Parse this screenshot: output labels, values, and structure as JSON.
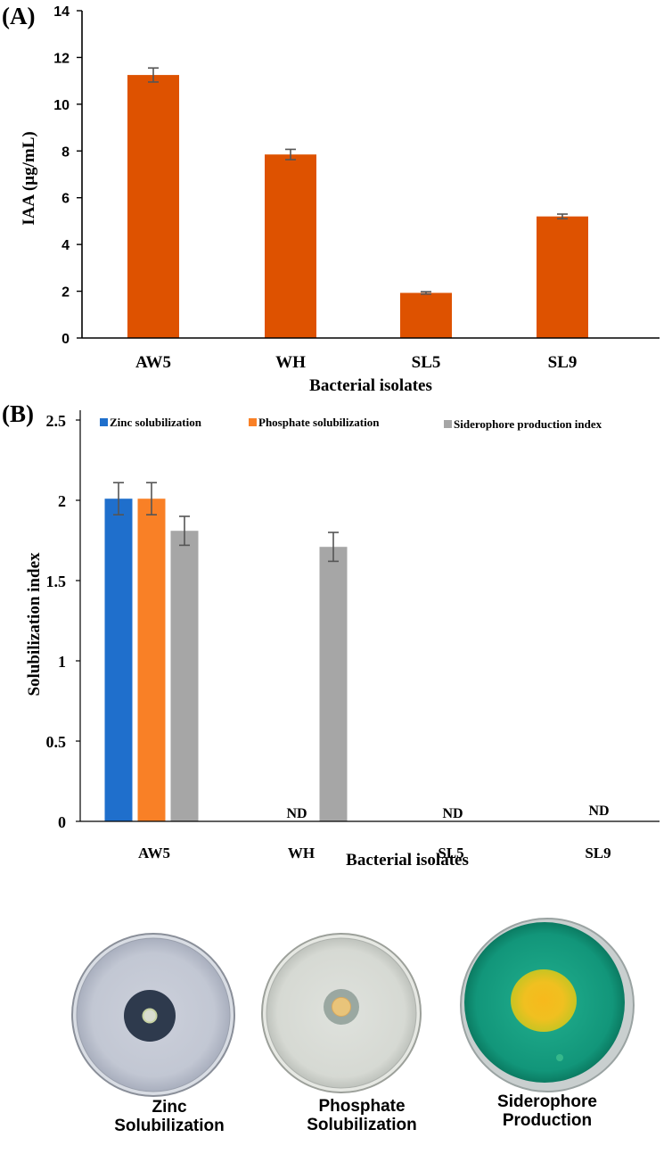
{
  "colors": {
    "iaa_bar": "#de5200",
    "zinc": "#1f6fcc",
    "phosphate": "#f98026",
    "siderophore": "#a6a6a6",
    "error": "#555555"
  },
  "chart_data": [
    {
      "panel_label": "(A)",
      "type": "bar",
      "title": "",
      "xlabel": "Bacterial isolates",
      "ylabel": "IAA (µg/mL)",
      "ylim": [
        0,
        14
      ],
      "yticks": [
        "0",
        "2",
        "4",
        "6",
        "8",
        "10",
        "12",
        "14"
      ],
      "categories": [
        "AW5",
        "WH",
        "SL5",
        "SL9"
      ],
      "values": [
        11.25,
        7.85,
        1.93,
        5.2
      ],
      "errors": [
        0.3,
        0.22,
        0.05,
        0.1
      ]
    },
    {
      "panel_label": "(B)",
      "type": "bar",
      "title": "",
      "xlabel": "Bacterial isolates",
      "ylabel": "Solubilization index",
      "ylim": [
        0,
        2.5
      ],
      "yticks": [
        "0",
        "0.5",
        "1",
        "1.5",
        "2",
        "2.5"
      ],
      "categories": [
        "AW5",
        "WH",
        "SL5",
        "SL9"
      ],
      "legend_position": "top",
      "series": [
        {
          "name": "Zinc solubilization",
          "values": [
            2.01,
            null,
            null,
            null
          ],
          "errors": [
            0.1,
            null,
            null,
            null
          ]
        },
        {
          "name": "Phosphate solubilization",
          "values": [
            2.01,
            null,
            null,
            null
          ],
          "errors": [
            0.1,
            null,
            null,
            null
          ]
        },
        {
          "name": "Siderophore production index",
          "values": [
            1.81,
            1.71,
            null,
            null
          ],
          "errors": [
            0.09,
            0.09,
            null,
            null
          ]
        }
      ],
      "not_detected_label": "ND",
      "not_detected_categories": [
        "WH",
        "SL5",
        "SL9"
      ]
    }
  ],
  "photos": [
    {
      "name": "zinc",
      "caption_line1": "Zinc",
      "caption_line2": "Solubilization"
    },
    {
      "name": "phosphate",
      "caption_line1": "Phosphate",
      "caption_line2": "Solubilization"
    },
    {
      "name": "siderophore",
      "caption_line1": "Siderophore",
      "caption_line2": "Production"
    }
  ]
}
